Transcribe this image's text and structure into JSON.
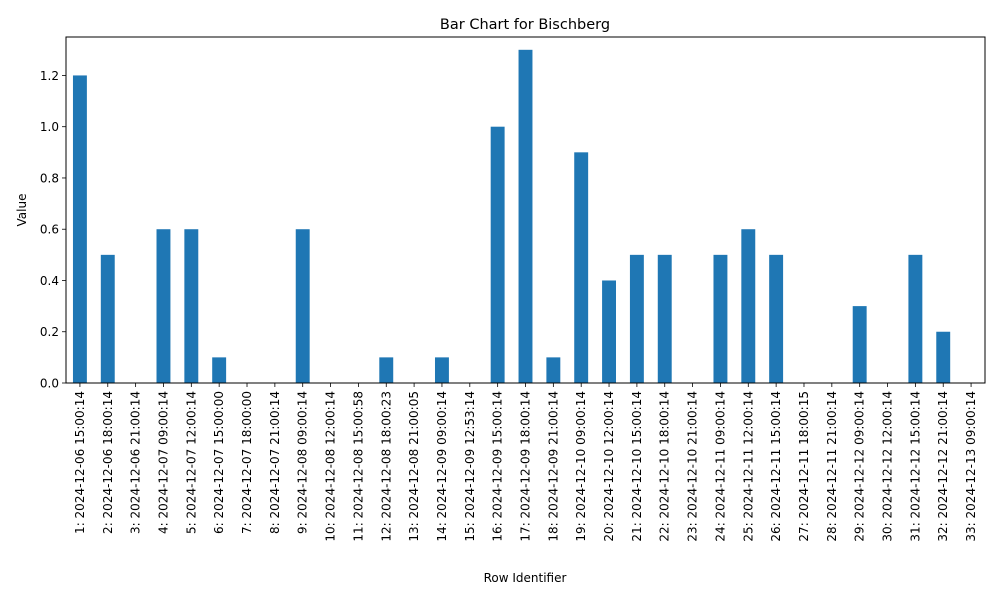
{
  "chart_data": {
    "type": "bar",
    "title": "Bar Chart for Bischberg",
    "xlabel": "Row Identifier",
    "ylabel": "Value",
    "ylim": [
      0,
      1.35
    ],
    "yticks": [
      "0.0",
      "0.2",
      "0.4",
      "0.6",
      "0.8",
      "1.0",
      "1.2"
    ],
    "grid": false,
    "bar_color": "#1f77b4",
    "categories": [
      "1: 2024-12-06 15:00:14",
      "2: 2024-12-06 18:00:14",
      "3: 2024-12-06 21:00:14",
      "4: 2024-12-07 09:00:14",
      "5: 2024-12-07 12:00:14",
      "6: 2024-12-07 15:00:00",
      "7: 2024-12-07 18:00:00",
      "8: 2024-12-07 21:00:14",
      "9: 2024-12-08 09:00:14",
      "10: 2024-12-08 12:00:14",
      "11: 2024-12-08 15:00:58",
      "12: 2024-12-08 18:00:23",
      "13: 2024-12-08 21:00:05",
      "14: 2024-12-09 09:00:14",
      "15: 2024-12-09 12:53:14",
      "16: 2024-12-09 15:00:14",
      "17: 2024-12-09 18:00:14",
      "18: 2024-12-09 21:00:14",
      "19: 2024-12-10 09:00:14",
      "20: 2024-12-10 12:00:14",
      "21: 2024-12-10 15:00:14",
      "22: 2024-12-10 18:00:14",
      "23: 2024-12-10 21:00:14",
      "24: 2024-12-11 09:00:14",
      "25: 2024-12-11 12:00:14",
      "26: 2024-12-11 15:00:14",
      "27: 2024-12-11 18:00:15",
      "28: 2024-12-11 21:00:14",
      "29: 2024-12-12 09:00:14",
      "30: 2024-12-12 12:00:14",
      "31: 2024-12-12 15:00:14",
      "32: 2024-12-12 21:00:14",
      "33: 2024-12-13 09:00:14"
    ],
    "values": [
      1.2,
      0.5,
      0.0,
      0.6,
      0.6,
      0.1,
      0.0,
      0.0,
      0.6,
      0.0,
      0.0,
      0.1,
      0.0,
      0.1,
      0.0,
      1.0,
      1.3,
      0.1,
      0.9,
      0.4,
      0.5,
      0.5,
      0.0,
      0.5,
      0.6,
      0.5,
      0.0,
      0.0,
      0.3,
      0.0,
      0.5,
      0.2,
      0.0
    ]
  }
}
